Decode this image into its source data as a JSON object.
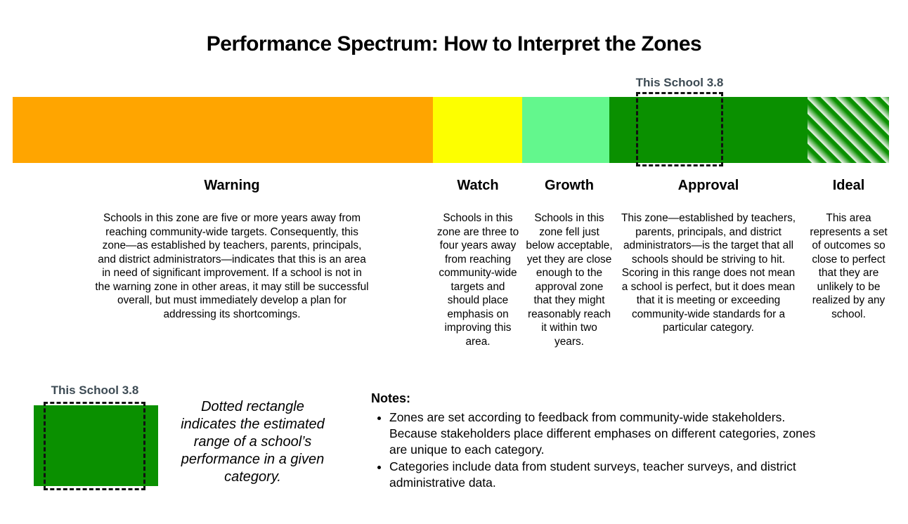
{
  "title": "Performance Spectrum: How to Interpret the Zones",
  "marker": {
    "label": "This School 3.8"
  },
  "zones": [
    {
      "name": "Warning",
      "color": "#FFA500",
      "description": "Schools in this zone are five or more years away from reaching community-wide targets. Consequently, this zone—as established by teachers, parents, principals, and district administrators—indicates that this is an area in need of significant improvement. If a school is not in the warning zone in other areas, it may still be successful overall, but must immediately develop a plan for addressing its shortcomings."
    },
    {
      "name": "Watch",
      "color": "#FDFF00",
      "description": "Schools in this zone are three to four years away from reaching community-wide targets and should place emphasis on improving this area."
    },
    {
      "name": "Growth",
      "color": "#63F78D",
      "description": "Schools in this zone fell just below acceptable, yet they are close enough to the approval zone that they might reasonably reach it within two years."
    },
    {
      "name": "Approval",
      "color": "#0A9000",
      "description": "This zone—established by teachers, parents, principals, and district administrators—is the target that all schools should be striving to hit. Scoring in this range does not mean a school is perfect, but it does mean that it is meeting or exceeding community-wide standards for a particular category."
    },
    {
      "name": "Ideal",
      "color": "#0A9000",
      "pattern": "diagonal-gradient-stripes",
      "description": "This area represents a set of outcomes so close to perfect that they are unlikely to be realized by any school."
    }
  ],
  "legend": {
    "marker_label": "This School 3.8",
    "swatch_color": "#0A9000",
    "caption": "Dotted rectangle indicates the estimated range of a school’s performance in a given category."
  },
  "notes": {
    "heading": "Notes:",
    "items": [
      "Zones are set according to feedback from community-wide stakeholders. Because stakeholders place different emphases on different categories, zones are unique to each category.",
      "Categories include data from student surveys, teacher surveys, and district administrative data."
    ]
  }
}
